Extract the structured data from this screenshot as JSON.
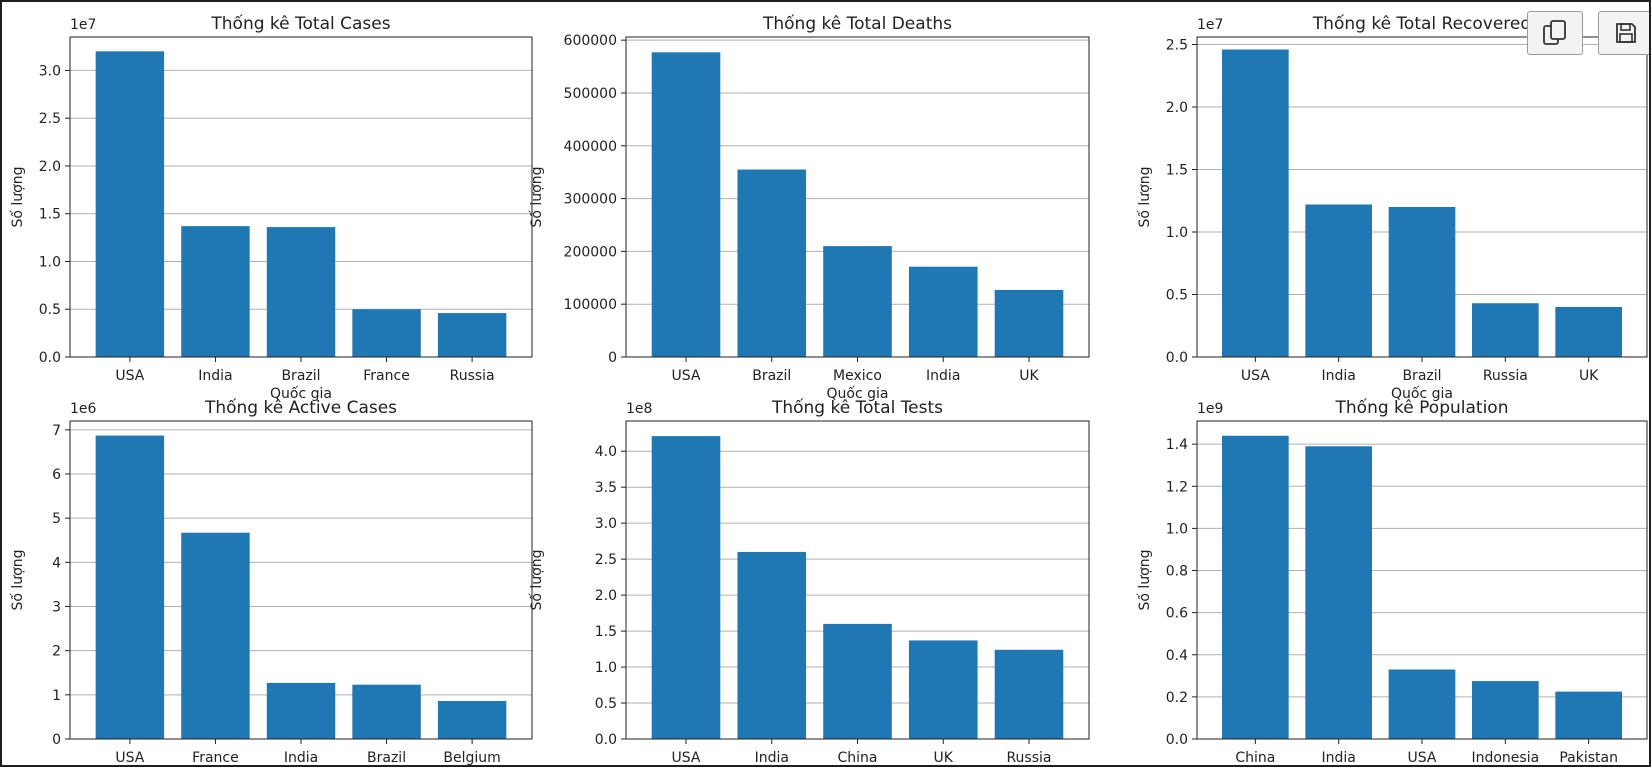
{
  "figure": {
    "bar_color": "#1f77b4",
    "grid_color": "#b0b0b0",
    "text_color": "#222222"
  },
  "toolbar": {
    "copy_icon": "copy-icon",
    "save_icon": "save-icon"
  },
  "chart_data": [
    {
      "type": "bar",
      "title": "Thống kê Total Cases",
      "xlabel": "Quốc gia",
      "ylabel": "Số lượng",
      "offset_label": "1e7",
      "categories": [
        "USA",
        "India",
        "Brazil",
        "France",
        "Russia"
      ],
      "values": [
        3.2,
        1.37,
        1.36,
        0.5,
        0.46
      ],
      "ylim": [
        0,
        3.35
      ],
      "yticks": [
        "0.0",
        "0.5",
        "1.0",
        "1.5",
        "2.0",
        "2.5",
        "3.0"
      ],
      "ytick_values": [
        0,
        0.5,
        1.0,
        1.5,
        2.0,
        2.5,
        3.0
      ],
      "grid": "y"
    },
    {
      "type": "bar",
      "title": "Thống kê Total Deaths",
      "xlabel": "Quốc gia",
      "ylabel": "Số lượng",
      "offset_label": "",
      "categories": [
        "USA",
        "Brazil",
        "Mexico",
        "India",
        "UK"
      ],
      "values": [
        577000,
        355000,
        210000,
        171000,
        127000
      ],
      "ylim": [
        0,
        606000
      ],
      "yticks": [
        "0",
        "100000",
        "200000",
        "300000",
        "400000",
        "500000",
        "600000"
      ],
      "ytick_values": [
        0,
        100000,
        200000,
        300000,
        400000,
        500000,
        600000
      ],
      "grid": "y"
    },
    {
      "type": "bar",
      "title": "Thống kê Total Recovered",
      "xlabel": "Quốc gia",
      "ylabel": "Số lượng",
      "offset_label": "1e7",
      "categories": [
        "USA",
        "India",
        "Brazil",
        "Russia",
        "UK"
      ],
      "values": [
        2.46,
        1.22,
        1.2,
        0.43,
        0.4
      ],
      "ylim": [
        0,
        2.56
      ],
      "yticks": [
        "0.0",
        "0.5",
        "1.0",
        "1.5",
        "2.0",
        "2.5"
      ],
      "ytick_values": [
        0,
        0.5,
        1.0,
        1.5,
        2.0,
        2.5
      ],
      "grid": "y"
    },
    {
      "type": "bar",
      "title": "Thống kê Active Cases",
      "xlabel": "",
      "ylabel": "Số lượng",
      "offset_label": "1e6",
      "categories": [
        "USA",
        "France",
        "India",
        "Brazil",
        "Belgium"
      ],
      "values": [
        6.87,
        4.67,
        1.27,
        1.23,
        0.86
      ],
      "ylim": [
        0,
        7.2
      ],
      "yticks": [
        "0",
        "1",
        "2",
        "3",
        "4",
        "5",
        "6",
        "7"
      ],
      "ytick_values": [
        0,
        1,
        2,
        3,
        4,
        5,
        6,
        7
      ],
      "grid": "y"
    },
    {
      "type": "bar",
      "title": "Thống kê Total Tests",
      "xlabel": "",
      "ylabel": "Số lượng",
      "offset_label": "1e8",
      "categories": [
        "USA",
        "India",
        "China",
        "UK",
        "Russia"
      ],
      "values": [
        4.21,
        2.6,
        1.6,
        1.37,
        1.24
      ],
      "ylim": [
        0,
        4.42
      ],
      "yticks": [
        "0.0",
        "0.5",
        "1.0",
        "1.5",
        "2.0",
        "2.5",
        "3.0",
        "3.5",
        "4.0"
      ],
      "ytick_values": [
        0,
        0.5,
        1.0,
        1.5,
        2.0,
        2.5,
        3.0,
        3.5,
        4.0
      ],
      "grid": "y"
    },
    {
      "type": "bar",
      "title": "Thống kê Population",
      "xlabel": "",
      "ylabel": "Số lượng",
      "offset_label": "1e9",
      "categories": [
        "China",
        "India",
        "USA",
        "Indonesia",
        "Pakistan"
      ],
      "values": [
        1.44,
        1.39,
        0.33,
        0.275,
        0.225
      ],
      "ylim": [
        0,
        1.51
      ],
      "yticks": [
        "0.0",
        "0.2",
        "0.4",
        "0.6",
        "0.8",
        "1.0",
        "1.2",
        "1.4"
      ],
      "ytick_values": [
        0,
        0.2,
        0.4,
        0.6,
        0.8,
        1.0,
        1.2,
        1.4
      ],
      "grid": "y"
    }
  ]
}
